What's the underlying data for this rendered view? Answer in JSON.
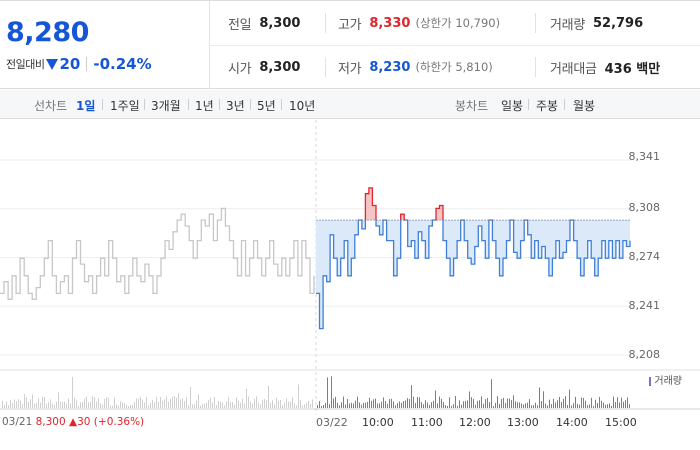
{
  "stock": {
    "price": "8,280",
    "change_label": "전일대비",
    "change_value": "20",
    "change_pct": "-0.24%"
  },
  "quote": {
    "prev_close": {
      "label": "전일",
      "value": "8,300"
    },
    "open": {
      "label": "시가",
      "value": "8,300"
    },
    "high": {
      "label": "고가",
      "value": "8,330",
      "sub": "(상한가 10,790)"
    },
    "low": {
      "label": "저가",
      "value": "8,230",
      "sub": "(하한가 5,810)"
    },
    "volume": {
      "label": "거래량",
      "value": "52,796"
    },
    "amount": {
      "label": "거래대금",
      "value": "436 백만"
    }
  },
  "line_tabs": {
    "title": "선차트",
    "items": [
      "1일",
      "1주일",
      "3개월",
      "1년",
      "3년",
      "5년",
      "10년"
    ],
    "active": 0
  },
  "candle_tabs": {
    "title": "봉차트",
    "items": [
      "일봉",
      "주봉",
      "월봉"
    ]
  },
  "chart_data": {
    "type": "line",
    "y_ticks": [
      "8,341",
      "8,308",
      "8,274",
      "8,241",
      "8,208"
    ],
    "ylim": [
      8208,
      8341
    ],
    "reference_price": 8300,
    "x_ticks": [
      "03/22",
      "10:00",
      "11:00",
      "12:00",
      "13:00",
      "14:00",
      "15:00"
    ],
    "prev_day_label": "03/21",
    "prev_day_close": "8,300",
    "prev_day_change": "▲30",
    "prev_day_pct": "(+0.36%)",
    "volume_legend": "거래량",
    "today_series": [
      8250,
      8226,
      8262,
      8258,
      8290,
      8274,
      8262,
      8274,
      8286,
      8262,
      8274,
      8290,
      8300,
      8294,
      8318,
      8322,
      8310,
      8296,
      8290,
      8300,
      8286,
      8286,
      8262,
      8274,
      8304,
      8300,
      8282,
      8286,
      8274,
      8292,
      8286,
      8274,
      8296,
      8300,
      8308,
      8310,
      8286,
      8274,
      8262,
      8274,
      8286,
      8300,
      8286,
      8274,
      8270,
      8282,
      8296,
      8286,
      8274,
      8300,
      8286,
      8274,
      8262,
      8274,
      8286,
      8300,
      8278,
      8274,
      8286,
      8300,
      8290,
      8274,
      8286,
      8274,
      8282,
      8274,
      8262,
      8274,
      8286,
      8274,
      8278,
      8286,
      8300,
      8286,
      8274,
      8262,
      8274,
      8286,
      8274,
      8262,
      8274,
      8286,
      8274,
      8286,
      8274,
      8286,
      8274,
      8286,
      8282,
      8286
    ],
    "prev_series": [
      8250,
      8258,
      8246,
      8262,
      8250,
      8274,
      8262,
      8250,
      8246,
      8254,
      8262,
      8274,
      8286,
      8262,
      8250,
      8258,
      8262,
      8250,
      8274,
      8286,
      8270,
      8258,
      8262,
      8250,
      8262,
      8274,
      8262,
      8286,
      8274,
      8258,
      8262,
      8250,
      8262,
      8274,
      8262,
      8258,
      8270,
      8262,
      8250,
      8262,
      8274,
      8286,
      8280,
      8292,
      8300,
      8304,
      8296,
      8286,
      8274,
      8286,
      8300,
      8296,
      8304,
      8286,
      8300,
      8308,
      8296,
      8286,
      8274,
      8262,
      8286,
      8262,
      8274,
      8286,
      8274,
      8262,
      8274,
      8286,
      8270,
      8262,
      8274,
      8262,
      8274,
      8286,
      8262,
      8286,
      8274,
      8250,
      8262
    ]
  },
  "colors": {
    "rise": "#e0262c",
    "fall": "#1556d6",
    "fall_line": "#3f7fd8",
    "fill_below": "#dce9f8",
    "fill_above": "#f7c4c6",
    "prev_line": "#c7c7c7",
    "volume_today": "#8a6bc4",
    "volume_prev": "#cfcfcf"
  }
}
